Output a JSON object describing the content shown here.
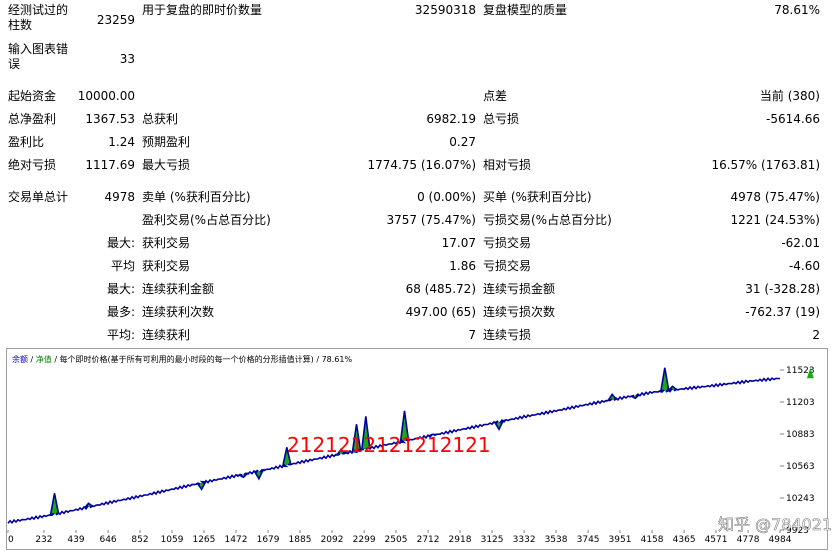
{
  "report": {
    "rows": [
      {
        "label": "经测试过的柱数",
        "value": "23259",
        "label2": "用于复盘的即时价数量",
        "value2": "32590318",
        "label3": "复盘模型的质量",
        "value3": "78.61%"
      },
      {
        "label": "输入图表错误",
        "value": "33"
      },
      {
        "label": "起始资金",
        "value": "10000.00",
        "label3": "点差",
        "value3": "当前 (380)"
      },
      {
        "label": "总净盈利",
        "value": "1367.53",
        "label2": "总获利",
        "value2": "6982.19",
        "label3": "总亏损",
        "value3": "-5614.66"
      },
      {
        "label": "盈利比",
        "value": "1.24",
        "label2": "预期盈利",
        "value2": "0.27"
      },
      {
        "label": "绝对亏损",
        "value": "1117.69",
        "label2": "最大亏损",
        "value2": "1774.75 (16.07%)",
        "label3": "相对亏损",
        "value3": "16.57% (1763.81)"
      },
      {
        "label": "交易单总计",
        "value": "4978",
        "label2": "卖单 (%获利百分比)",
        "value2": "0 (0.00%)",
        "label3": "买单 (%获利百分比)",
        "value3": "4978 (75.47%)"
      },
      {
        "label2": "盈利交易(%占总百分比)",
        "value2": "3757 (75.47%)",
        "label3": "亏损交易(%占总百分比)",
        "value3": "1221 (24.53%)"
      },
      {
        "value": "最大:",
        "label2": "获利交易",
        "value2": "17.07",
        "label3": "亏损交易",
        "value3": "-62.01"
      },
      {
        "value": "平均",
        "label2": "获利交易",
        "value2": "1.86",
        "label3": "亏损交易",
        "value3": "-4.60"
      },
      {
        "value": "最大:",
        "label2": "连续获利金额",
        "value2": "68 (485.72)",
        "label3": "连续亏损金额",
        "value3": "31 (-328.28)"
      },
      {
        "value": "最多:",
        "label2": "连续获利次数",
        "value2": "497.00 (65)",
        "label3": "连续亏损次数",
        "value3": "-762.37 (19)"
      },
      {
        "value": "平均:",
        "label2": "连续获利",
        "value2": "7",
        "label3": "连续亏损",
        "value3": "2"
      }
    ]
  },
  "chart_legend": {
    "balance": "余额",
    "sep1": " / ",
    "equity": "净值",
    "rest": " / 每个即时价格(基于所有可利用的最小时段的每一个价格的分形插值计算) / 78.61%"
  },
  "overlay_text": "2121212121212121",
  "watermark": "知乎 @784021",
  "colors": {
    "balance_line": "#0000a0",
    "equity_fill": "#00a000",
    "overlay": "#ff0000",
    "legend_balance": "#0000c0",
    "legend_equity": "#008000"
  },
  "chart_data": {
    "type": "line",
    "title": "",
    "xlabel": "",
    "ylabel": "",
    "x_ticks": [
      "0",
      "232",
      "439",
      "646",
      "852",
      "1059",
      "1265",
      "1472",
      "1679",
      "1885",
      "2092",
      "2299",
      "2505",
      "2712",
      "2918",
      "3125",
      "3332",
      "3538",
      "3745",
      "3951",
      "4158",
      "4365",
      "4571",
      "4778",
      "4984"
    ],
    "y_ticks": [
      "11523",
      "11203",
      "10883",
      "10563",
      "10243",
      "9923"
    ],
    "xlim": [
      0,
      4984
    ],
    "ylim": [
      9923,
      11523
    ],
    "series": [
      {
        "name": "余额",
        "x": [
          0,
          232,
          439,
          646,
          852,
          1059,
          1265,
          1472,
          1679,
          1885,
          2092,
          2299,
          2505,
          2712,
          2918,
          3125,
          3332,
          3538,
          3745,
          3951,
          4158,
          4365,
          4571,
          4778,
          4984
        ],
        "values": [
          10000,
          10060,
          10125,
          10195,
          10260,
          10330,
          10400,
          10465,
          10530,
          10600,
          10665,
          10730,
          10795,
          10860,
          10925,
          10990,
          11055,
          11115,
          11180,
          11240,
          11300,
          11335,
          11370,
          11410,
          11440
        ]
      }
    ],
    "spikes": [
      {
        "x": 300,
        "y": 10290
      },
      {
        "x": 520,
        "y": 10190
      },
      {
        "x": 1250,
        "y": 10330
      },
      {
        "x": 1520,
        "y": 10450
      },
      {
        "x": 1620,
        "y": 10435
      },
      {
        "x": 1800,
        "y": 10750
      },
      {
        "x": 2150,
        "y": 10730
      },
      {
        "x": 2250,
        "y": 10980
      },
      {
        "x": 2310,
        "y": 11060
      },
      {
        "x": 2560,
        "y": 11115
      },
      {
        "x": 2740,
        "y": 10880
      },
      {
        "x": 3170,
        "y": 10930
      },
      {
        "x": 3900,
        "y": 11280
      },
      {
        "x": 4050,
        "y": 11240
      },
      {
        "x": 4240,
        "y": 11545
      },
      {
        "x": 4290,
        "y": 11360
      },
      {
        "x": 5180,
        "y": 11545
      }
    ]
  }
}
